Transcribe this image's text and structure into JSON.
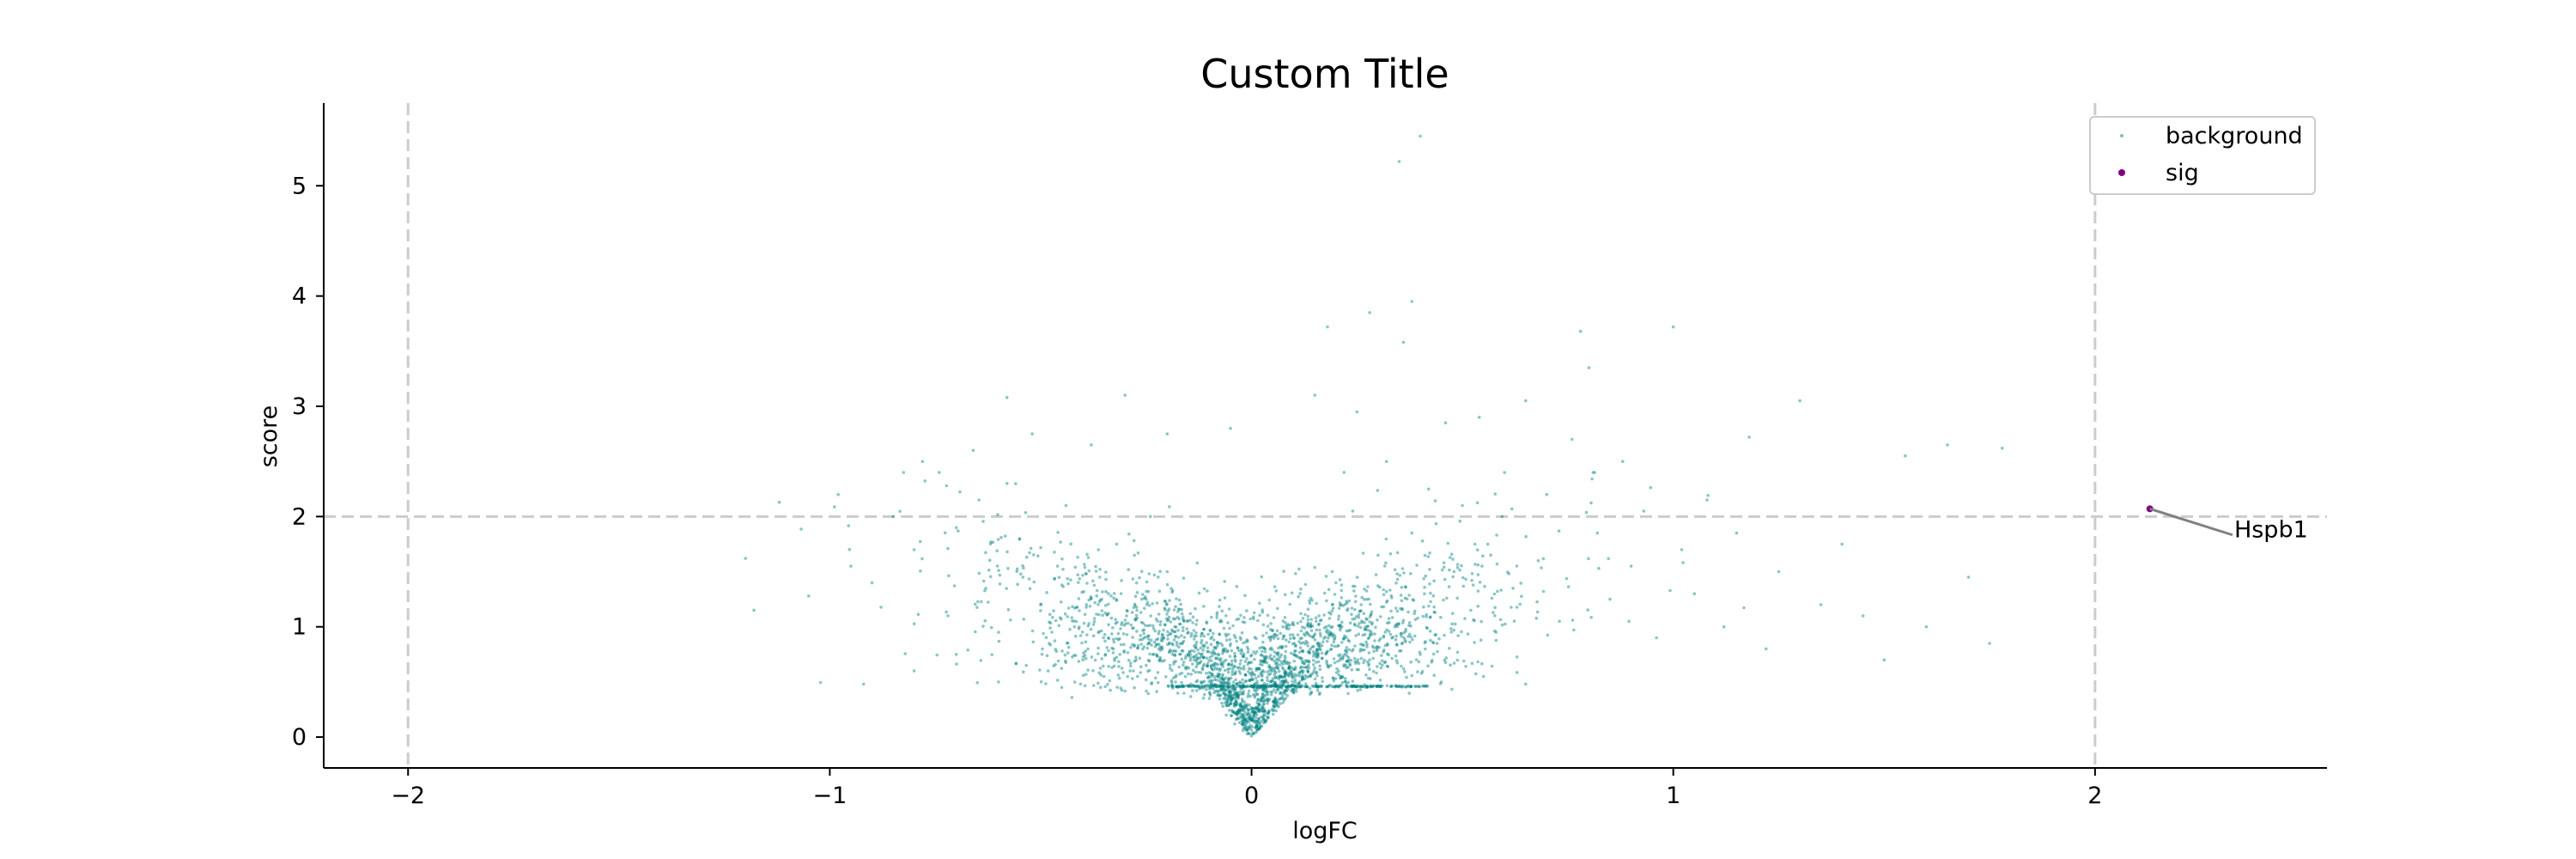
{
  "chart_data": {
    "type": "scatter",
    "title": "Custom Title",
    "xlabel": "logFC",
    "ylabel": "score",
    "xlim": [
      -2.2,
      2.55
    ],
    "ylim": [
      -0.28,
      5.75
    ],
    "x_ticks": [
      -2,
      -1,
      0,
      1,
      2
    ],
    "x_tick_labels": [
      "−2",
      "−1",
      "0",
      "1",
      "2"
    ],
    "y_ticks": [
      0,
      1,
      2,
      3,
      4,
      5
    ],
    "y_tick_labels": [
      "0",
      "1",
      "2",
      "3",
      "4",
      "5"
    ],
    "grid": false,
    "legend_position": "top-right",
    "thresholds": {
      "logFC": [
        -2,
        2
      ],
      "score": 2
    },
    "series": [
      {
        "name": "background",
        "color": "#008080",
        "points": [
          [
            -1.18,
            1.15
          ],
          [
            -1.2,
            1.62
          ],
          [
            -1.12,
            2.13
          ],
          [
            -1.05,
            1.28
          ],
          [
            -0.98,
            2.2
          ],
          [
            -0.95,
            1.55
          ],
          [
            -0.9,
            1.4
          ],
          [
            -0.85,
            2.0
          ],
          [
            -0.8,
            1.7
          ],
          [
            -0.78,
            2.5
          ],
          [
            -0.72,
            1.1
          ],
          [
            -0.7,
            1.9
          ],
          [
            -0.66,
            2.6
          ],
          [
            -0.63,
            1.35
          ],
          [
            -0.6,
            0.95
          ],
          [
            -0.58,
            2.3
          ],
          [
            -0.55,
            1.8
          ],
          [
            -0.52,
            2.75
          ],
          [
            -0.5,
            1.2
          ],
          [
            -0.48,
            0.85
          ],
          [
            -0.46,
            1.55
          ],
          [
            -0.44,
            2.1
          ],
          [
            -0.42,
            1.0
          ],
          [
            -0.4,
            0.7
          ],
          [
            -0.38,
            2.65
          ],
          [
            -0.36,
            1.45
          ],
          [
            -0.34,
            0.9
          ],
          [
            -0.32,
            1.75
          ],
          [
            -0.3,
            3.1
          ],
          [
            -0.28,
            0.6
          ],
          [
            -0.26,
            1.25
          ],
          [
            -0.24,
            2.0
          ],
          [
            -0.22,
            0.8
          ],
          [
            -0.2,
            1.5
          ],
          [
            -0.18,
            0.5
          ],
          [
            -0.16,
            1.05
          ],
          [
            -0.14,
            0.42
          ],
          [
            -0.12,
            0.75
          ],
          [
            -0.1,
            0.35
          ],
          [
            -0.08,
            0.55
          ],
          [
            -0.06,
            0.2
          ],
          [
            -0.05,
            0.3
          ],
          [
            -0.04,
            0.12
          ],
          [
            -0.03,
            0.25
          ],
          [
            -0.02,
            0.06
          ],
          [
            -0.01,
            0.03
          ],
          [
            0.0,
            0.01
          ],
          [
            0.01,
            0.04
          ],
          [
            0.02,
            0.08
          ],
          [
            0.03,
            0.15
          ],
          [
            0.04,
            0.22
          ],
          [
            0.06,
            0.32
          ],
          [
            0.08,
            0.5
          ],
          [
            0.1,
            0.4
          ],
          [
            0.12,
            0.78
          ],
          [
            0.14,
            0.55
          ],
          [
            0.16,
            1.1
          ],
          [
            0.18,
            0.65
          ],
          [
            0.2,
            1.4
          ],
          [
            0.22,
            0.9
          ],
          [
            0.24,
            2.05
          ],
          [
            0.26,
            1.2
          ],
          [
            0.28,
            0.7
          ],
          [
            0.3,
            1.65
          ],
          [
            0.32,
            2.5
          ],
          [
            0.34,
            1.0
          ],
          [
            0.35,
            5.22
          ],
          [
            0.36,
            3.58
          ],
          [
            0.38,
            1.85
          ],
          [
            0.4,
            5.45
          ],
          [
            0.41,
            1.3
          ],
          [
            0.42,
            2.25
          ],
          [
            0.44,
            0.85
          ],
          [
            0.46,
            2.85
          ],
          [
            0.48,
            1.5
          ],
          [
            0.5,
            2.1
          ],
          [
            0.52,
            1.15
          ],
          [
            0.54,
            2.9
          ],
          [
            0.56,
            1.75
          ],
          [
            0.58,
            0.95
          ],
          [
            0.6,
            2.4
          ],
          [
            0.62,
            1.35
          ],
          [
            0.65,
            3.05
          ],
          [
            0.68,
            1.6
          ],
          [
            0.7,
            2.2
          ],
          [
            0.73,
            1.05
          ],
          [
            0.76,
            2.7
          ],
          [
            0.78,
            3.68
          ],
          [
            0.8,
            3.35
          ],
          [
            0.82,
            1.85
          ],
          [
            0.85,
            1.25
          ],
          [
            0.88,
            2.5
          ],
          [
            0.9,
            1.55
          ],
          [
            0.93,
            2.05
          ],
          [
            0.96,
            0.9
          ],
          [
            1.0,
            3.72
          ],
          [
            1.02,
            1.7
          ],
          [
            1.05,
            1.3
          ],
          [
            1.08,
            2.15
          ],
          [
            1.12,
            1.0
          ],
          [
            1.15,
            1.85
          ],
          [
            1.18,
            2.72
          ],
          [
            1.22,
            0.8
          ],
          [
            1.25,
            1.5
          ],
          [
            1.3,
            3.05
          ],
          [
            1.35,
            1.2
          ],
          [
            1.4,
            1.75
          ],
          [
            1.45,
            1.1
          ],
          [
            1.5,
            0.7
          ],
          [
            1.55,
            2.55
          ],
          [
            1.6,
            1.0
          ],
          [
            1.65,
            2.65
          ],
          [
            1.7,
            1.45
          ],
          [
            1.75,
            0.85
          ],
          [
            1.78,
            2.62
          ],
          [
            -0.6,
            0.5
          ],
          [
            -0.45,
            0.45
          ],
          [
            -0.35,
            0.55
          ],
          [
            0.15,
            3.1
          ],
          [
            0.28,
            3.85
          ],
          [
            0.38,
            3.95
          ],
          [
            0.18,
            3.72
          ],
          [
            0.25,
            2.95
          ],
          [
            -0.05,
            2.8
          ],
          [
            -0.58,
            3.08
          ],
          [
            -0.2,
            2.75
          ],
          [
            0.45,
            0.5
          ],
          [
            0.55,
            0.55
          ],
          [
            0.65,
            0.48
          ],
          [
            -0.8,
            0.6
          ],
          [
            -0.7,
            0.75
          ],
          [
            -0.92,
            0.48
          ]
        ],
        "bands": [
          {
            "x": [
              -1.1,
              1.25
            ],
            "sigma_x": 0.3,
            "y": [
              0.35,
              2.4
            ],
            "count": 2000
          },
          {
            "x": [
              -0.12,
              0.12
            ],
            "sigma_x": 0.05,
            "y": [
              0.0,
              0.4
            ],
            "count": 420
          }
        ],
        "plateau": {
          "x_range": [
            -0.2,
            0.42
          ],
          "y": 0.46,
          "count": 260
        }
      },
      {
        "name": "sig",
        "color": "#800080",
        "points": [
          [
            2.13,
            2.07
          ]
        ]
      }
    ],
    "annotations": [
      {
        "text": "Hspb1",
        "x": 2.13,
        "y": 2.07,
        "text_x": 2.33,
        "text_y": 1.88
      }
    ]
  }
}
